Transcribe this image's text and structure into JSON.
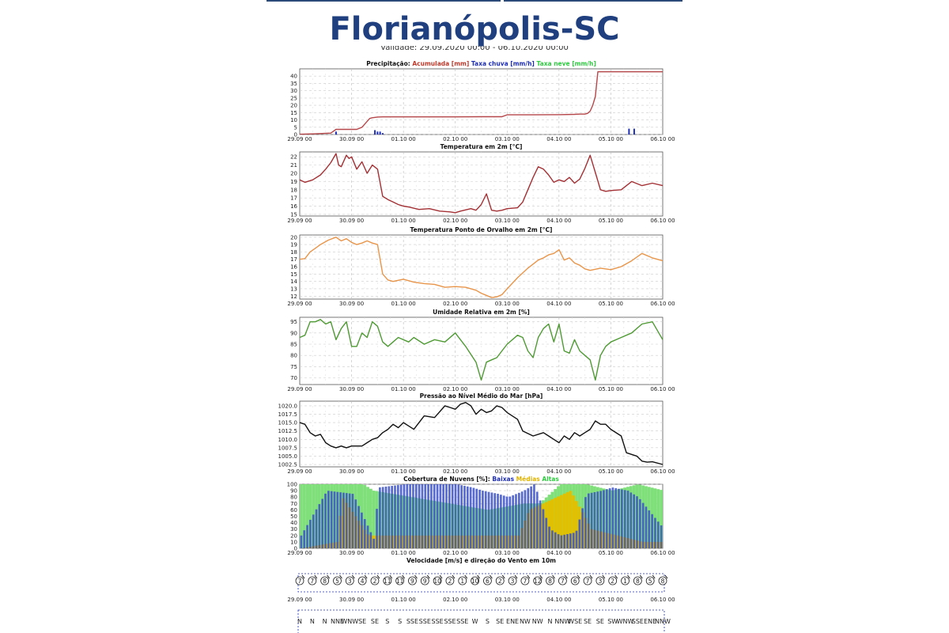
{
  "header": {
    "title": "Florianópolis-SC",
    "validity": "Validade: 29.09.2020 00:00 - 06.10.2020 00:00"
  },
  "x_ticks": [
    "29.09 00",
    "30.09 00",
    "01.10 00",
    "02.10 00",
    "03.10 00",
    "04.10 00",
    "05.10 00",
    "06.10 00"
  ],
  "chart_data": [
    {
      "id": "precip",
      "type": "line",
      "title_parts": [
        {
          "text": "Precipitação: ",
          "color": "#111111"
        },
        {
          "text": "Acumulada [mm] ",
          "color": "#c0392b"
        },
        {
          "text": "Taxa chuva [mm/h] ",
          "color": "#1f2fb5"
        },
        {
          "text": "Taxa neve [mm/h]",
          "color": "#2ecc40"
        }
      ],
      "ylim": [
        0,
        45
      ],
      "yticks": [
        0,
        5,
        10,
        15,
        20,
        25,
        30,
        35,
        40
      ],
      "series": [
        {
          "name": "Acumulada [mm]",
          "color": "#b5474a",
          "kind": "line",
          "x": [
            0,
            0.3,
            0.6,
            0.7,
            1.1,
            1.2,
            1.3,
            1.35,
            1.4,
            1.5,
            1.6,
            2.0,
            2.5,
            3.0,
            3.5,
            3.9,
            4.0,
            4.5,
            4.9,
            5.0,
            5.3,
            5.4,
            5.5,
            5.55,
            5.6,
            5.65,
            5.7,
            5.75,
            6.0,
            7.0
          ],
          "y": [
            0.2,
            0.5,
            1.0,
            3.5,
            3.5,
            5,
            9,
            11,
            11.5,
            12,
            12.1,
            12.1,
            12.1,
            12.1,
            12.2,
            12.2,
            13.5,
            13.5,
            13.6,
            13.6,
            13.8,
            14,
            14,
            14.5,
            16,
            20,
            26,
            43,
            43,
            43
          ]
        },
        {
          "name": "Taxa chuva [mm/h]",
          "color": "#1f2fb5",
          "kind": "bar",
          "x": [
            0.7,
            1.45,
            1.5,
            1.55,
            1.6,
            6.35,
            6.45
          ],
          "y": [
            2,
            3,
            2,
            2,
            1,
            4,
            4
          ]
        }
      ]
    },
    {
      "id": "temp",
      "type": "line",
      "title_parts": [
        {
          "text": "Temperatura em 2m [°C]",
          "color": "#111111"
        }
      ],
      "ylim": [
        14.8,
        22.6
      ],
      "yticks": [
        15,
        16,
        17,
        18,
        19,
        20,
        21,
        22
      ],
      "series": [
        {
          "name": "Temperatura em 2m [°C]",
          "color": "#a33034",
          "x": [
            0,
            0.1,
            0.25,
            0.4,
            0.5,
            0.6,
            0.7,
            0.75,
            0.8,
            0.9,
            0.95,
            1.0,
            1.1,
            1.2,
            1.3,
            1.4,
            1.5,
            1.6,
            1.7,
            1.8,
            1.9,
            2.0,
            2.1,
            2.3,
            2.5,
            2.7,
            2.9,
            3.0,
            3.1,
            3.3,
            3.4,
            3.5,
            3.6,
            3.7,
            3.8,
            3.9,
            4.0,
            4.2,
            4.3,
            4.4,
            4.5,
            4.6,
            4.7,
            4.8,
            4.9,
            5.0,
            5.1,
            5.2,
            5.3,
            5.4,
            5.5,
            5.6,
            5.7,
            5.8,
            5.9,
            6.0,
            6.2,
            6.4,
            6.6,
            6.8,
            7.0
          ],
          "y": [
            19.2,
            18.9,
            19.2,
            19.8,
            20.5,
            21.3,
            22.4,
            21.0,
            20.8,
            22.2,
            21.8,
            22.0,
            20.5,
            21.4,
            20.0,
            21.0,
            20.5,
            17.2,
            16.8,
            16.5,
            16.2,
            16.0,
            15.9,
            15.6,
            15.7,
            15.4,
            15.3,
            15.2,
            15.4,
            15.7,
            15.5,
            16.2,
            17.5,
            15.5,
            15.4,
            15.5,
            15.7,
            15.8,
            16.5,
            18.0,
            19.5,
            20.8,
            20.5,
            19.8,
            18.9,
            19.2,
            19.0,
            19.5,
            18.8,
            19.3,
            20.6,
            22.2,
            20.1,
            18.0,
            17.8,
            17.9,
            18.0,
            19.0,
            18.5,
            18.8,
            18.5
          ]
        }
      ]
    },
    {
      "id": "dew",
      "type": "line",
      "title_parts": [
        {
          "text": "Temperatura Ponto de Orvalho em 2m [°C]",
          "color": "#111111"
        }
      ],
      "ylim": [
        11.6,
        20.3
      ],
      "yticks": [
        12,
        13,
        14,
        15,
        16,
        17,
        18,
        19,
        20
      ],
      "series": [
        {
          "name": "Temperatura Ponto de Orvalho em 2m [°C]",
          "color": "#e8954a",
          "x": [
            0,
            0.1,
            0.2,
            0.3,
            0.4,
            0.55,
            0.7,
            0.8,
            0.9,
            1.0,
            1.1,
            1.2,
            1.3,
            1.4,
            1.5,
            1.6,
            1.7,
            1.8,
            2.0,
            2.2,
            2.4,
            2.6,
            2.8,
            3.0,
            3.2,
            3.4,
            3.5,
            3.6,
            3.7,
            3.8,
            3.9,
            4.0,
            4.2,
            4.4,
            4.6,
            4.7,
            4.8,
            4.9,
            5.0,
            5.1,
            5.2,
            5.3,
            5.4,
            5.5,
            5.6,
            5.8,
            6.0,
            6.2,
            6.4,
            6.6,
            6.8,
            7.0
          ],
          "y": [
            17.0,
            17.1,
            18.0,
            18.5,
            19.0,
            19.6,
            20.0,
            19.5,
            19.8,
            19.3,
            19.0,
            19.2,
            19.5,
            19.2,
            19.0,
            15.0,
            14.2,
            14.0,
            14.3,
            13.9,
            13.7,
            13.6,
            13.2,
            13.3,
            13.2,
            12.8,
            12.4,
            12.1,
            11.8,
            11.9,
            12.2,
            13.0,
            14.5,
            15.8,
            16.9,
            17.2,
            17.6,
            17.8,
            18.3,
            16.9,
            17.2,
            16.5,
            16.2,
            15.7,
            15.5,
            15.8,
            15.6,
            16.0,
            16.8,
            17.8,
            17.2,
            16.8
          ]
        }
      ]
    },
    {
      "id": "rh",
      "type": "line",
      "title_parts": [
        {
          "text": "Umidade Relativa em 2m [%]",
          "color": "#111111"
        }
      ],
      "ylim": [
        67,
        97
      ],
      "yticks": [
        70,
        75,
        80,
        85,
        90,
        95
      ],
      "series": [
        {
          "name": "Umidade Relativa em 2m [%]",
          "color": "#4f9a34",
          "x": [
            0,
            0.1,
            0.2,
            0.3,
            0.4,
            0.5,
            0.6,
            0.7,
            0.8,
            0.9,
            1.0,
            1.1,
            1.2,
            1.3,
            1.4,
            1.5,
            1.6,
            1.7,
            1.8,
            1.9,
            2.0,
            2.1,
            2.2,
            2.4,
            2.6,
            2.8,
            3.0,
            3.2,
            3.4,
            3.5,
            3.6,
            3.7,
            3.8,
            3.9,
            4.0,
            4.2,
            4.3,
            4.4,
            4.5,
            4.6,
            4.7,
            4.8,
            4.9,
            5.0,
            5.1,
            5.2,
            5.3,
            5.4,
            5.5,
            5.6,
            5.7,
            5.8,
            5.9,
            6.0,
            6.2,
            6.4,
            6.6,
            6.8,
            7.0
          ],
          "y": [
            88,
            89,
            95,
            95,
            96,
            94,
            95,
            87,
            92,
            95,
            84,
            84,
            90,
            88,
            95,
            93,
            86,
            84,
            86,
            88,
            87,
            86,
            88,
            85,
            87,
            86,
            90,
            84,
            77,
            69,
            77,
            78,
            79,
            82,
            85,
            89,
            88,
            82,
            79,
            88,
            92,
            94,
            86,
            94,
            82,
            81,
            87,
            82,
            80,
            78,
            69,
            80,
            84,
            86,
            88,
            90,
            94,
            95,
            87
          ]
        }
      ]
    },
    {
      "id": "pres",
      "type": "line",
      "title_parts": [
        {
          "text": "Pressão ao Nível Médio do Mar [hPa]",
          "color": "#111111"
        }
      ],
      "ylim": [
        1001.8,
        1021.4
      ],
      "yticks": [
        1002.5,
        1005.0,
        1007.5,
        1010.0,
        1012.5,
        1015.0,
        1017.5,
        1020.0
      ],
      "series": [
        {
          "name": "Pressão ao Nível Médio do Mar [hPa]",
          "color": "#111111",
          "x": [
            0,
            0.1,
            0.2,
            0.3,
            0.4,
            0.5,
            0.6,
            0.7,
            0.8,
            0.9,
            1.0,
            1.2,
            1.3,
            1.4,
            1.5,
            1.6,
            1.7,
            1.8,
            1.9,
            2.0,
            2.1,
            2.2,
            2.4,
            2.6,
            2.8,
            2.9,
            3.0,
            3.1,
            3.2,
            3.3,
            3.4,
            3.5,
            3.6,
            3.7,
            3.8,
            3.9,
            4.0,
            4.2,
            4.3,
            4.5,
            4.7,
            4.8,
            4.9,
            5.0,
            5.1,
            5.2,
            5.3,
            5.4,
            5.5,
            5.6,
            5.7,
            5.8,
            5.9,
            6.0,
            6.2,
            6.3,
            6.5,
            6.6,
            6.7,
            6.8,
            7.0
          ],
          "y": [
            1015,
            1014.5,
            1012,
            1011,
            1011.5,
            1009,
            1008,
            1007.5,
            1008,
            1007.5,
            1008,
            1008,
            1009,
            1010,
            1010.5,
            1012,
            1013,
            1014.5,
            1013.5,
            1015,
            1014,
            1013,
            1017,
            1016.5,
            1020,
            1019.5,
            1019,
            1020.5,
            1021,
            1020,
            1017.5,
            1019,
            1018,
            1018.5,
            1020,
            1019.5,
            1018,
            1016,
            1012.5,
            1011,
            1012,
            1011,
            1010,
            1009,
            1011,
            1010,
            1012,
            1011,
            1012,
            1013,
            1015.5,
            1014.5,
            1014.5,
            1013,
            1011,
            1006,
            1005,
            1003.5,
            1003.2,
            1003.3,
            1002.5
          ]
        }
      ]
    },
    {
      "id": "clouds",
      "type": "bar",
      "title_parts": [
        {
          "text": "Cobertura de Nuvens [%]: ",
          "color": "#111111"
        },
        {
          "text": "Baixas ",
          "color": "#1f2fb5"
        },
        {
          "text": "Médias ",
          "color": "#e0b400"
        },
        {
          "text": "Altas",
          "color": "#2ecc40"
        }
      ],
      "ylim": [
        0,
        100
      ],
      "yticks": [
        0,
        10,
        20,
        30,
        40,
        50,
        60,
        70,
        80,
        90,
        100
      ],
      "series": [
        {
          "name": "Baixas",
          "color": "#3a50c8",
          "x": [
            0,
            0.5,
            1.0,
            1.4,
            1.5,
            2.0,
            2.5,
            3.0,
            3.3,
            3.5,
            3.8,
            4.0,
            4.3,
            4.5,
            4.8,
            5.0,
            5.3,
            5.5,
            5.8,
            6.0,
            6.3,
            6.5,
            6.7,
            6.9,
            7.0
          ],
          "y": [
            20,
            90,
            85,
            15,
            95,
            100,
            100,
            100,
            95,
            90,
            85,
            80,
            90,
            100,
            30,
            20,
            25,
            85,
            90,
            95,
            90,
            80,
            60,
            40,
            30
          ]
        },
        {
          "name": "Médias",
          "color": "#e0c000",
          "x": [
            0,
            0.7,
            0.8,
            1.3,
            4.2,
            4.4,
            5.2,
            5.6,
            6.6
          ],
          "y": [
            0,
            10,
            80,
            20,
            20,
            60,
            90,
            30,
            10
          ]
        },
        {
          "name": "Altas",
          "color": "#7fe07a",
          "x": [
            0,
            0.2,
            0.8,
            1.2,
            1.4,
            3.6,
            4.3,
            4.6,
            5.0,
            5.5,
            6.0,
            6.5,
            7.0
          ],
          "y": [
            100,
            100,
            100,
            100,
            90,
            60,
            70,
            70,
            100,
            100,
            90,
            100,
            90
          ]
        }
      ]
    },
    {
      "id": "wind",
      "type": "scatter",
      "title_parts": [
        {
          "text": "Velocidade [m/s] e direção do Vento em 10m",
          "color": "#111111"
        }
      ],
      "speeds": [
        "7",
        "7",
        "8",
        "5",
        "3",
        "4",
        "2",
        "11",
        "11",
        "9",
        "9",
        "10",
        "2",
        "1",
        "10",
        "6",
        "2",
        "3",
        "7",
        "12",
        "8",
        "7",
        "6",
        "7",
        "3",
        "2",
        "1",
        "8",
        "5",
        "8"
      ],
      "directions": [
        "N",
        "N",
        "N",
        "NNE",
        "WNW",
        "SE",
        "SE",
        "S",
        "S",
        "SSE",
        "SSE",
        "SSE",
        "SSE",
        "SSE",
        "W",
        "S",
        "SE",
        "ENE",
        "NW",
        "NW",
        "N",
        "NNW",
        "WSE",
        "SE",
        "SE",
        "SW",
        "WNW",
        "SSE",
        "ENE",
        "NNW"
      ]
    }
  ]
}
